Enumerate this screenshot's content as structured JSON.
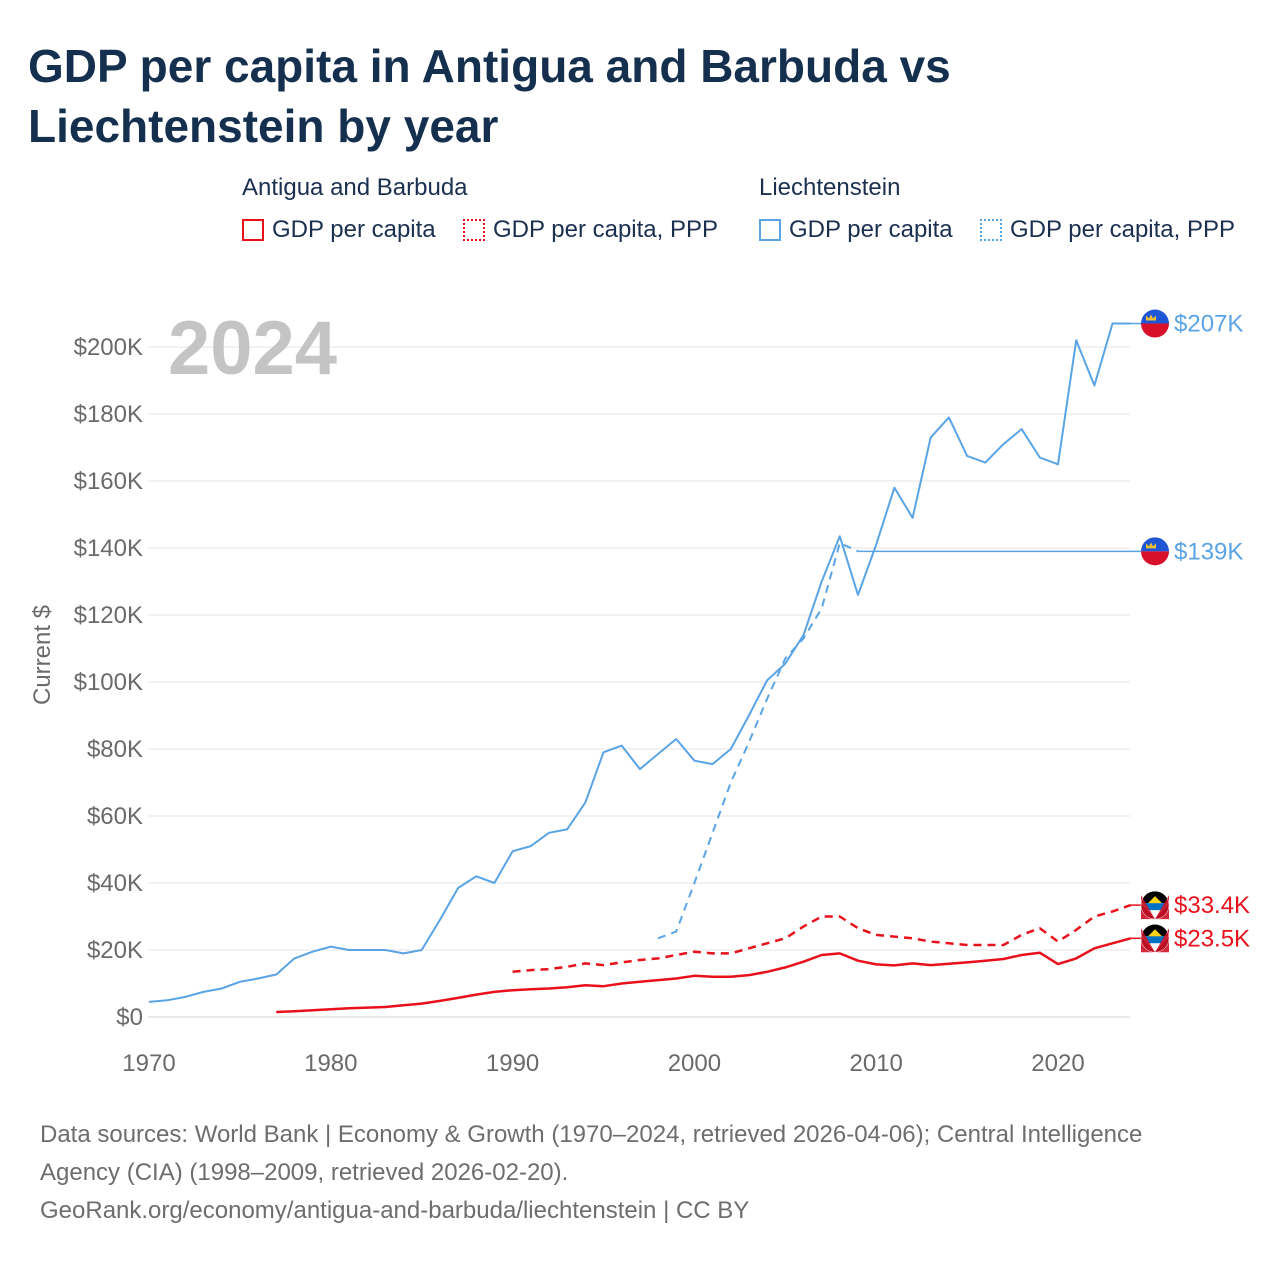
{
  "title": "GDP per capita in Antigua and Barbuda vs Liechtenstein by year",
  "legend": {
    "groups": [
      {
        "name": "Antigua and Barbuda",
        "items": [
          "GDP per capita",
          "GDP per capita, PPP"
        ]
      },
      {
        "name": "Liechtenstein",
        "items": [
          "GDP per capita",
          "GDP per capita, PPP"
        ]
      }
    ]
  },
  "colors": {
    "antigua": "#e8111b",
    "liechtenstein": "#5aa4e6",
    "year_watermark": "#c4c4c4",
    "grid": "#e6e6e6",
    "axis_text": "#6a6a6a"
  },
  "footer": {
    "line1": "Data sources: World Bank | Economy & Growth (1970–2024, retrieved 2026-04-06); Central Intelligence",
    "line2": "Agency (CIA) (1998–2009, retrieved 2026-02-20).",
    "line3": "GeoRank.org/economy/antigua-and-barbuda/liechtenstein | CC BY"
  },
  "chart_data": {
    "type": "line",
    "year_label": "2024",
    "ylabel": "Current $",
    "xlim": [
      1970,
      2024
    ],
    "ylim": [
      0,
      210000
    ],
    "x_ticks": [
      1970,
      1980,
      1990,
      2000,
      2010,
      2020
    ],
    "x_tick_labels": [
      "1970",
      "1980",
      "1990",
      "2000",
      "2010",
      "2020"
    ],
    "y_ticks": [
      0,
      20000,
      40000,
      60000,
      80000,
      100000,
      120000,
      140000,
      160000,
      180000,
      200000
    ],
    "y_tick_labels": [
      "$0",
      "$20K",
      "$40K",
      "$60K",
      "$80K",
      "$100K",
      "$120K",
      "$140K",
      "$160K",
      "$180K",
      "$200K"
    ],
    "series": [
      {
        "name": "Liechtenstein GDP per capita",
        "color": "#5aa4e6",
        "dashed": false,
        "end_label": "$207K",
        "points": [
          [
            1970,
            4500
          ],
          [
            1971,
            5000
          ],
          [
            1972,
            6000
          ],
          [
            1973,
            7500
          ],
          [
            1974,
            8500
          ],
          [
            1975,
            10500
          ],
          [
            1976,
            11500
          ],
          [
            1977,
            12700
          ],
          [
            1978,
            17500
          ],
          [
            1979,
            19500
          ],
          [
            1980,
            21000
          ],
          [
            1981,
            20000
          ],
          [
            1982,
            20000
          ],
          [
            1983,
            20000
          ],
          [
            1984,
            19000
          ],
          [
            1985,
            20000
          ],
          [
            1986,
            29000
          ],
          [
            1987,
            38500
          ],
          [
            1988,
            42000
          ],
          [
            1989,
            40000
          ],
          [
            1990,
            49500
          ],
          [
            1991,
            51000
          ],
          [
            1992,
            55000
          ],
          [
            1993,
            56000
          ],
          [
            1994,
            64000
          ],
          [
            1995,
            79000
          ],
          [
            1996,
            81000
          ],
          [
            1997,
            74000
          ],
          [
            1998,
            78500
          ],
          [
            1999,
            83000
          ],
          [
            2000,
            76500
          ],
          [
            2001,
            75500
          ],
          [
            2002,
            80000
          ],
          [
            2003,
            90000
          ],
          [
            2004,
            100500
          ],
          [
            2005,
            105500
          ],
          [
            2006,
            114000
          ],
          [
            2007,
            130000
          ],
          [
            2008,
            143500
          ],
          [
            2009,
            126000
          ],
          [
            2010,
            141000
          ],
          [
            2011,
            158000
          ],
          [
            2012,
            149000
          ],
          [
            2013,
            173000
          ],
          [
            2014,
            179000
          ],
          [
            2015,
            167500
          ],
          [
            2016,
            165500
          ],
          [
            2017,
            171000
          ],
          [
            2018,
            175500
          ],
          [
            2019,
            167000
          ],
          [
            2020,
            165000
          ],
          [
            2021,
            202000
          ],
          [
            2022,
            188500
          ],
          [
            2023,
            207000
          ],
          [
            2024,
            207000
          ]
        ]
      },
      {
        "name": "Liechtenstein GDP per capita, PPP",
        "color": "#5aa4e6",
        "dashed": true,
        "end_label": "$139K",
        "points": [
          [
            1998,
            23500
          ],
          [
            1999,
            25500
          ],
          [
            2000,
            40000
          ],
          [
            2001,
            55000
          ],
          [
            2002,
            70000
          ],
          [
            2003,
            82000
          ],
          [
            2004,
            95000
          ],
          [
            2005,
            107000
          ],
          [
            2006,
            113000
          ],
          [
            2007,
            122000
          ],
          [
            2008,
            141500
          ],
          [
            2009,
            139000
          ]
        ]
      },
      {
        "name": "Antigua and Barbuda GDP per capita, PPP",
        "color": "#e8111b",
        "dashed": true,
        "end_label": "$33.4K",
        "points": [
          [
            1990,
            13500
          ],
          [
            1991,
            14000
          ],
          [
            1992,
            14300
          ],
          [
            1993,
            15000
          ],
          [
            1994,
            16000
          ],
          [
            1995,
            15500
          ],
          [
            1996,
            16300
          ],
          [
            1997,
            17000
          ],
          [
            1998,
            17500
          ],
          [
            1999,
            18500
          ],
          [
            2000,
            19500
          ],
          [
            2001,
            19000
          ],
          [
            2002,
            19000
          ],
          [
            2003,
            20500
          ],
          [
            2004,
            22000
          ],
          [
            2005,
            23500
          ],
          [
            2006,
            27000
          ],
          [
            2007,
            30000
          ],
          [
            2008,
            30000
          ],
          [
            2009,
            26500
          ],
          [
            2010,
            24500
          ],
          [
            2011,
            24000
          ],
          [
            2012,
            23500
          ],
          [
            2013,
            22500
          ],
          [
            2014,
            22000
          ],
          [
            2015,
            21500
          ],
          [
            2016,
            21500
          ],
          [
            2017,
            21500
          ],
          [
            2018,
            24500
          ],
          [
            2019,
            26500
          ],
          [
            2020,
            22500
          ],
          [
            2021,
            26000
          ],
          [
            2022,
            30000
          ],
          [
            2023,
            31500
          ],
          [
            2024,
            33400
          ]
        ]
      },
      {
        "name": "Antigua and Barbuda GDP per capita",
        "color": "#e8111b",
        "dashed": false,
        "end_label": "$23.5K",
        "points": [
          [
            1977,
            1500
          ],
          [
            1978,
            1700
          ],
          [
            1979,
            2000
          ],
          [
            1980,
            2300
          ],
          [
            1981,
            2600
          ],
          [
            1982,
            2800
          ],
          [
            1983,
            3000
          ],
          [
            1984,
            3500
          ],
          [
            1985,
            4000
          ],
          [
            1986,
            4800
          ],
          [
            1987,
            5700
          ],
          [
            1988,
            6700
          ],
          [
            1989,
            7500
          ],
          [
            1990,
            8000
          ],
          [
            1991,
            8300
          ],
          [
            1992,
            8500
          ],
          [
            1993,
            8900
          ],
          [
            1994,
            9500
          ],
          [
            1995,
            9200
          ],
          [
            1996,
            10000
          ],
          [
            1997,
            10500
          ],
          [
            1998,
            11000
          ],
          [
            1999,
            11500
          ],
          [
            2000,
            12300
          ],
          [
            2001,
            12000
          ],
          [
            2002,
            12000
          ],
          [
            2003,
            12500
          ],
          [
            2004,
            13500
          ],
          [
            2005,
            14800
          ],
          [
            2006,
            16500
          ],
          [
            2007,
            18500
          ],
          [
            2008,
            19000
          ],
          [
            2009,
            16800
          ],
          [
            2010,
            15700
          ],
          [
            2011,
            15400
          ],
          [
            2012,
            16000
          ],
          [
            2013,
            15500
          ],
          [
            2014,
            15900
          ],
          [
            2015,
            16300
          ],
          [
            2016,
            16800
          ],
          [
            2017,
            17300
          ],
          [
            2018,
            18500
          ],
          [
            2019,
            19200
          ],
          [
            2020,
            15800
          ],
          [
            2021,
            17500
          ],
          [
            2022,
            20500
          ],
          [
            2023,
            22000
          ],
          [
            2024,
            23500
          ]
        ]
      }
    ]
  }
}
